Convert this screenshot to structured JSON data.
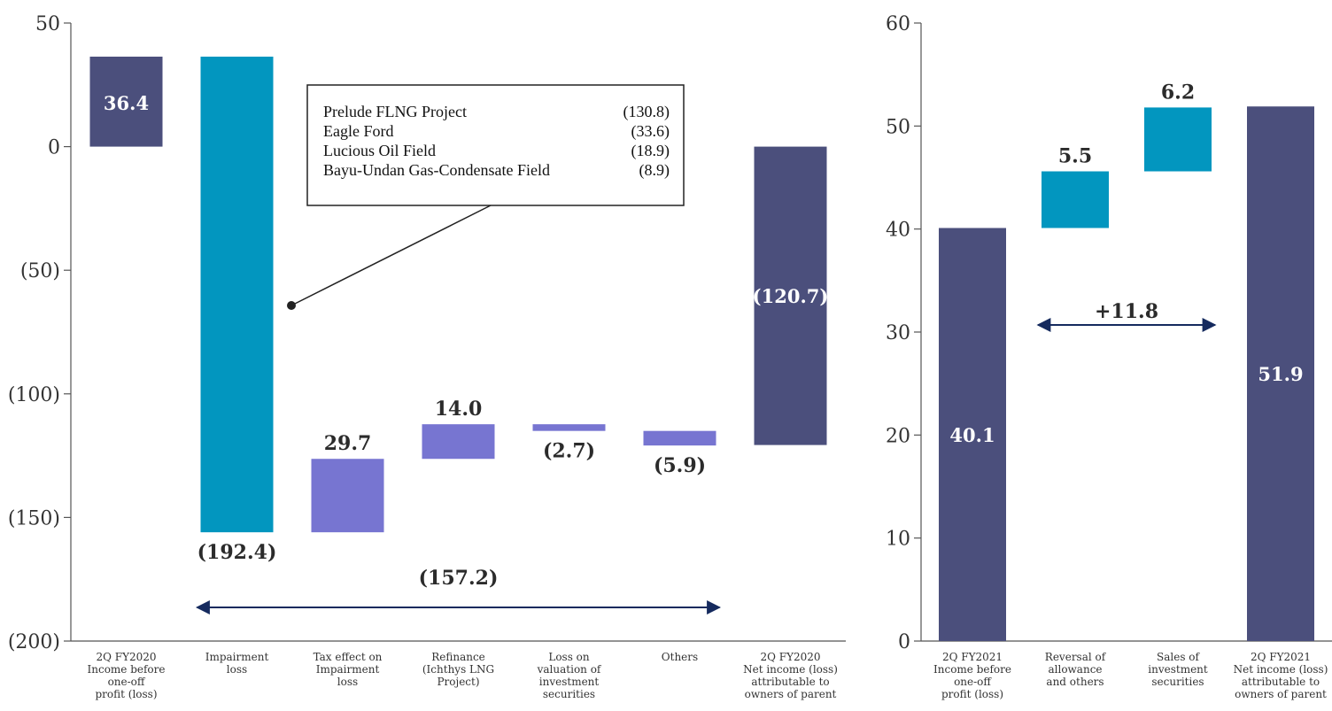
{
  "chart_data": [
    {
      "type": "waterfall",
      "ylim": [
        -200,
        50
      ],
      "yticks": [
        50,
        0,
        -50,
        -100,
        -150,
        -200
      ],
      "ytick_labels": [
        "50",
        "0",
        "(50)",
        "(100)",
        "(150)",
        "(200)"
      ],
      "categories": [
        [
          "2Q FY2020",
          "Income before",
          "one-off",
          "profit (loss)"
        ],
        [
          "Impairment",
          "loss"
        ],
        [
          "Tax effect on",
          "Impairment",
          "loss"
        ],
        [
          "Refinance",
          "(Ichthys LNG",
          "Project)"
        ],
        [
          "Loss on",
          "valuation of",
          "investment",
          "securities"
        ],
        [
          "Others"
        ],
        [
          "2Q FY2020",
          "Net income (loss)",
          "attributable to",
          "owners of parent"
        ]
      ],
      "values": [
        36.4,
        -192.4,
        29.7,
        14.0,
        -2.7,
        -5.9,
        -120.7
      ],
      "kinds": [
        "total",
        "delta",
        "delta",
        "delta",
        "delta",
        "delta",
        "total"
      ],
      "value_labels": [
        "36.4",
        "(192.4)",
        "29.7",
        "14.0",
        "(2.7)",
        "(5.9)",
        "(120.7)"
      ],
      "label_positions": [
        "inside",
        "below",
        "above",
        "above",
        "below",
        "below",
        "inside"
      ],
      "colors": [
        "#4b4f7c",
        "#0296bf",
        "#7775d1",
        "#7775d1",
        "#7775d1",
        "#7775d1",
        "#4b4f7c"
      ],
      "span": {
        "from": 1,
        "to": 5,
        "label": "(157.2)"
      },
      "callout": {
        "rows": [
          {
            "name": "Prelude FLNG Project",
            "value": "(130.8)"
          },
          {
            "name": "Eagle Ford",
            "value": "(33.6)"
          },
          {
            "name": "Lucious Oil Field",
            "value": "(18.9)"
          },
          {
            "name": "Bayu-Undan Gas-Condensate Field",
            "value": "(8.9)"
          }
        ]
      }
    },
    {
      "type": "waterfall",
      "ylim": [
        0,
        60
      ],
      "yticks": [
        0,
        10,
        20,
        30,
        40,
        50,
        60
      ],
      "ytick_labels": [
        "0",
        "10",
        "20",
        "30",
        "40",
        "50",
        "60"
      ],
      "categories": [
        [
          "2Q FY2021",
          "Income before",
          "one-off",
          "profit (loss)"
        ],
        [
          "Reversal of",
          "allowance",
          "and others"
        ],
        [
          "Sales of",
          "investment",
          "securities"
        ],
        [
          "2Q FY2021",
          "Net income (loss)",
          "attributable to",
          "owners of parent"
        ]
      ],
      "values": [
        40.1,
        5.5,
        6.2,
        51.9
      ],
      "kinds": [
        "total",
        "delta",
        "delta",
        "total"
      ],
      "value_labels": [
        "40.1",
        "5.5",
        "6.2",
        "51.9"
      ],
      "label_positions": [
        "inside",
        "above",
        "above",
        "inside"
      ],
      "colors": [
        "#4b4f7c",
        "#0296bf",
        "#0296bf",
        "#4b4f7c"
      ],
      "span": {
        "from": 1,
        "to": 2,
        "label": "+11.8"
      }
    }
  ],
  "colors": {
    "axis": "#555555",
    "arrow": "#152a5e"
  }
}
